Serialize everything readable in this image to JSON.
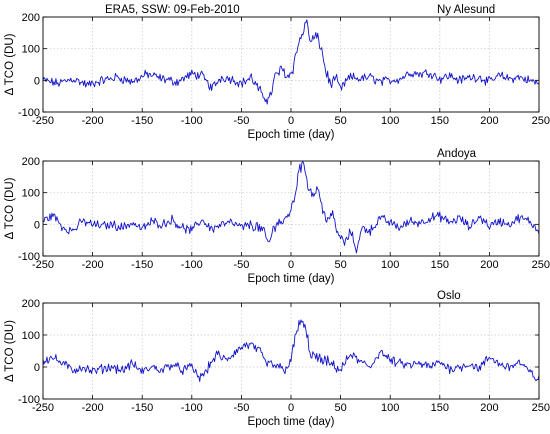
{
  "chart_data": [
    {
      "type": "line",
      "title": "Ny Alesund",
      "caption": "ERA5, SSW: 09-Feb-2010",
      "xlabel": "Epoch time (day)",
      "ylabel": "Δ TCO (DU)",
      "xlim": [
        -250,
        250
      ],
      "ylim": [
        -100,
        200
      ],
      "x_ticks": [
        -250,
        -200,
        -150,
        -100,
        -50,
        0,
        50,
        100,
        150,
        200,
        250
      ],
      "y_ticks": [
        -100,
        0,
        100,
        200
      ],
      "grid": true,
      "color": "#1414c8",
      "keypoints": [
        [
          -250,
          0
        ],
        [
          -235,
          -10
        ],
        [
          -220,
          5
        ],
        [
          -205,
          -15
        ],
        [
          -190,
          0
        ],
        [
          -175,
          10
        ],
        [
          -160,
          -5
        ],
        [
          -145,
          20
        ],
        [
          -130,
          5
        ],
        [
          -115,
          -5
        ],
        [
          -100,
          20
        ],
        [
          -90,
          15
        ],
        [
          -80,
          -25
        ],
        [
          -70,
          10
        ],
        [
          -60,
          5
        ],
        [
          -50,
          -10
        ],
        [
          -40,
          10
        ],
        [
          -30,
          -45
        ],
        [
          -22,
          -60
        ],
        [
          -15,
          20
        ],
        [
          -8,
          35
        ],
        [
          -3,
          10
        ],
        [
          2,
          40
        ],
        [
          7,
          110
        ],
        [
          12,
          150
        ],
        [
          15,
          190
        ],
        [
          20,
          120
        ],
        [
          25,
          140
        ],
        [
          30,
          110
        ],
        [
          35,
          30
        ],
        [
          40,
          -15
        ],
        [
          45,
          10
        ],
        [
          50,
          -30
        ],
        [
          55,
          -5
        ],
        [
          60,
          10
        ],
        [
          70,
          5
        ],
        [
          80,
          10
        ],
        [
          90,
          -5
        ],
        [
          100,
          0
        ],
        [
          110,
          5
        ],
        [
          120,
          25
        ],
        [
          130,
          20
        ],
        [
          140,
          25
        ],
        [
          150,
          5
        ],
        [
          160,
          15
        ],
        [
          170,
          0
        ],
        [
          180,
          10
        ],
        [
          190,
          10
        ],
        [
          200,
          -5
        ],
        [
          210,
          15
        ],
        [
          220,
          5
        ],
        [
          230,
          10
        ],
        [
          240,
          0
        ],
        [
          250,
          -10
        ]
      ]
    },
    {
      "type": "line",
      "title": "Andoya",
      "xlabel": "Epoch time (day)",
      "ylabel": "Δ TCO (DU)",
      "xlim": [
        -250,
        250
      ],
      "ylim": [
        -100,
        200
      ],
      "x_ticks": [
        -250,
        -200,
        -150,
        -100,
        -50,
        0,
        50,
        100,
        150,
        200,
        250
      ],
      "y_ticks": [
        -100,
        0,
        100,
        200
      ],
      "grid": true,
      "color": "#1414c8",
      "keypoints": [
        [
          -250,
          10
        ],
        [
          -240,
          30
        ],
        [
          -230,
          -10
        ],
        [
          -220,
          -20
        ],
        [
          -210,
          10
        ],
        [
          -200,
          0
        ],
        [
          -190,
          -5
        ],
        [
          -180,
          0
        ],
        [
          -170,
          -10
        ],
        [
          -160,
          5
        ],
        [
          -150,
          -15
        ],
        [
          -140,
          10
        ],
        [
          -130,
          0
        ],
        [
          -120,
          15
        ],
        [
          -110,
          -10
        ],
        [
          -100,
          -20
        ],
        [
          -90,
          15
        ],
        [
          -80,
          -15
        ],
        [
          -70,
          0
        ],
        [
          -60,
          5
        ],
        [
          -50,
          -10
        ],
        [
          -40,
          0
        ],
        [
          -30,
          -15
        ],
        [
          -22,
          -60
        ],
        [
          -15,
          10
        ],
        [
          -8,
          5
        ],
        [
          -3,
          30
        ],
        [
          3,
          70
        ],
        [
          8,
          180
        ],
        [
          13,
          190
        ],
        [
          17,
          130
        ],
        [
          22,
          90
        ],
        [
          27,
          120
        ],
        [
          32,
          40
        ],
        [
          37,
          20
        ],
        [
          42,
          30
        ],
        [
          47,
          -30
        ],
        [
          55,
          -60
        ],
        [
          60,
          -20
        ],
        [
          66,
          -80
        ],
        [
          72,
          -10
        ],
        [
          80,
          -20
        ],
        [
          90,
          20
        ],
        [
          100,
          5
        ],
        [
          110,
          -10
        ],
        [
          120,
          10
        ],
        [
          130,
          5
        ],
        [
          140,
          20
        ],
        [
          150,
          25
        ],
        [
          160,
          5
        ],
        [
          170,
          20
        ],
        [
          180,
          -10
        ],
        [
          190,
          25
        ],
        [
          200,
          -5
        ],
        [
          210,
          10
        ],
        [
          220,
          0
        ],
        [
          230,
          20
        ],
        [
          240,
          10
        ],
        [
          250,
          -20
        ]
      ]
    },
    {
      "type": "line",
      "title": "Oslo",
      "xlabel": "Epoch time (day)",
      "ylabel": "Δ TCO (DU)",
      "xlim": [
        -250,
        250
      ],
      "ylim": [
        -100,
        200
      ],
      "x_ticks": [
        -250,
        -200,
        -150,
        -100,
        -50,
        0,
        50,
        100,
        150,
        200,
        250
      ],
      "y_ticks": [
        -100,
        0,
        100,
        200
      ],
      "grid": true,
      "color": "#1414c8",
      "keypoints": [
        [
          -250,
          20
        ],
        [
          -240,
          30
        ],
        [
          -230,
          10
        ],
        [
          -220,
          -10
        ],
        [
          -210,
          0
        ],
        [
          -200,
          -15
        ],
        [
          -190,
          -5
        ],
        [
          -180,
          0
        ],
        [
          -170,
          -10
        ],
        [
          -160,
          10
        ],
        [
          -150,
          -15
        ],
        [
          -140,
          0
        ],
        [
          -130,
          -10
        ],
        [
          -120,
          10
        ],
        [
          -110,
          -10
        ],
        [
          -100,
          0
        ],
        [
          -92,
          -35
        ],
        [
          -85,
          -10
        ],
        [
          -75,
          40
        ],
        [
          -65,
          20
        ],
        [
          -55,
          50
        ],
        [
          -45,
          70
        ],
        [
          -35,
          60
        ],
        [
          -25,
          10
        ],
        [
          -15,
          5
        ],
        [
          -8,
          -10
        ],
        [
          0,
          20
        ],
        [
          5,
          100
        ],
        [
          10,
          150
        ],
        [
          15,
          110
        ],
        [
          20,
          40
        ],
        [
          30,
          20
        ],
        [
          40,
          10
        ],
        [
          50,
          -10
        ],
        [
          60,
          40
        ],
        [
          70,
          15
        ],
        [
          80,
          0
        ],
        [
          90,
          50
        ],
        [
          100,
          20
        ],
        [
          110,
          10
        ],
        [
          120,
          5
        ],
        [
          130,
          10
        ],
        [
          140,
          0
        ],
        [
          150,
          15
        ],
        [
          160,
          -5
        ],
        [
          170,
          0
        ],
        [
          180,
          10
        ],
        [
          190,
          -5
        ],
        [
          200,
          30
        ],
        [
          210,
          10
        ],
        [
          220,
          0
        ],
        [
          230,
          15
        ],
        [
          240,
          -15
        ],
        [
          250,
          -40
        ]
      ]
    }
  ]
}
